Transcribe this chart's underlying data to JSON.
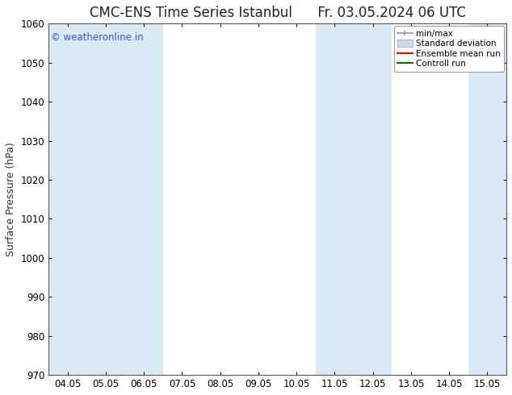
{
  "title_left": "CMC-ENS Time Series Istanbul",
  "title_right": "Fr. 03.05.2024 06 UTC",
  "ylabel": "Surface Pressure (hPa)",
  "ylim": [
    970,
    1060
  ],
  "yticks": [
    970,
    980,
    990,
    1000,
    1010,
    1020,
    1030,
    1040,
    1050,
    1060
  ],
  "xtick_labels": [
    "04.05",
    "05.05",
    "06.05",
    "07.05",
    "08.05",
    "09.05",
    "10.05",
    "11.05",
    "12.05",
    "13.05",
    "14.05",
    "15.05"
  ],
  "n_ticks": 12,
  "shaded_indices": [
    0,
    1,
    2,
    7,
    8,
    11
  ],
  "shade_color": "#daeaf5",
  "watermark": "© weatheronline.in",
  "watermark_color": "#3355cc",
  "legend_entries": [
    "min/max",
    "Standard deviation",
    "Ensemble mean run",
    "Controll run"
  ],
  "legend_colors": [
    "#999999",
    "#bbbbbb",
    "#ff0000",
    "#007700"
  ],
  "bg_color": "#ffffff",
  "title_fontsize": 12,
  "tick_fontsize": 8.5,
  "ylabel_fontsize": 9
}
